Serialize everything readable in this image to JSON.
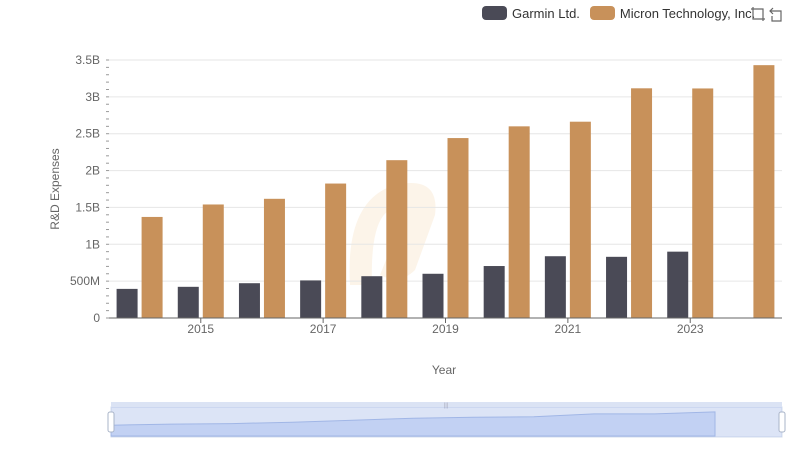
{
  "colors": {
    "garmin": "#4a4a56",
    "micron": "#c8915a",
    "grid": "#e6e6e6",
    "axis": "#666666"
  },
  "legend": {
    "items": [
      {
        "label": "Garmin Ltd.",
        "color": "#4a4a56"
      },
      {
        "label": "Micron Technology, Inc.",
        "color": "#c8915a"
      }
    ]
  },
  "toolbox": {
    "icons": [
      "zoom-icon",
      "restore-icon"
    ]
  },
  "chart_data": {
    "type": "bar",
    "xlabel": "Year",
    "ylabel": "R&D Expenses",
    "categories": [
      "2014",
      "2015",
      "2016",
      "2017",
      "2018",
      "2019",
      "2020",
      "2021",
      "2022",
      "2023",
      "2024"
    ],
    "x_tick_labels": [
      "2015",
      "2017",
      "2019",
      "2021",
      "2023"
    ],
    "y_tick_labels": [
      "0",
      "500M",
      "1B",
      "1.5B",
      "2B",
      "2.5B",
      "3B",
      "3.5B"
    ],
    "ylim": [
      0,
      3500000000
    ],
    "grid": true,
    "legend_position": "top-right",
    "series": [
      {
        "name": "Garmin Ltd.",
        "color": "#4a4a56",
        "values": [
          395000000,
          423000000,
          472000000,
          510000000,
          567000000,
          600000000,
          705000000,
          838000000,
          830000000,
          900000000,
          null
        ]
      },
      {
        "name": "Micron Technology, Inc.",
        "color": "#c8915a",
        "values": [
          1371000000,
          1540000000,
          1617000000,
          1824000000,
          2141000000,
          2441000000,
          2600000000,
          2663000000,
          3116000000,
          3114000000,
          3430000000
        ]
      }
    ]
  }
}
